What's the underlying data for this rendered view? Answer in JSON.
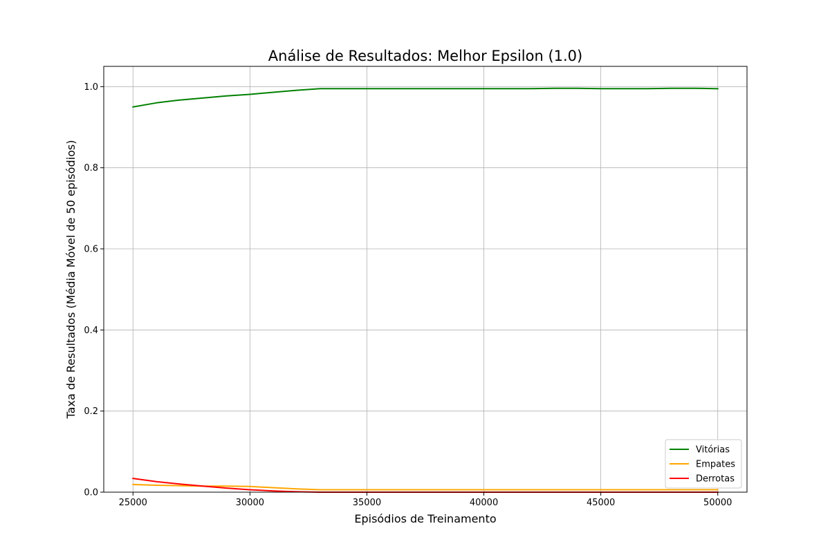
{
  "chart_data": {
    "type": "line",
    "title": "Análise de Resultados: Melhor Epsilon (1.0)",
    "xlabel": "Episódios de Treinamento",
    "ylabel": "Taxa de Resultados (Média Móvel de 50 episódios)",
    "xlim": [
      23750,
      51250
    ],
    "ylim": [
      0.0,
      1.05
    ],
    "xticks": [
      25000,
      30000,
      35000,
      40000,
      45000,
      50000
    ],
    "yticks": [
      0.0,
      0.2,
      0.4,
      0.6,
      0.8,
      1.0
    ],
    "ytick_labels": [
      "0.0",
      "0.2",
      "0.4",
      "0.6",
      "0.8",
      "1.0"
    ],
    "grid": true,
    "legend_position": "lower-right",
    "x": [
      25000,
      26000,
      27000,
      28000,
      29000,
      30000,
      31000,
      32000,
      33000,
      34000,
      35000,
      36000,
      37000,
      38000,
      39000,
      40000,
      41000,
      42000,
      43000,
      44000,
      45000,
      46000,
      47000,
      48000,
      49000,
      50000
    ],
    "series": [
      {
        "name": "Vitórias",
        "color": "#008000",
        "values": [
          0.95,
          0.96,
          0.967,
          0.972,
          0.977,
          0.981,
          0.986,
          0.991,
          0.995,
          0.995,
          0.995,
          0.995,
          0.995,
          0.995,
          0.995,
          0.995,
          0.995,
          0.995,
          0.996,
          0.996,
          0.995,
          0.995,
          0.995,
          0.996,
          0.996,
          0.995
        ]
      },
      {
        "name": "Empates",
        "color": "#ffa500",
        "values": [
          0.019,
          0.017,
          0.016,
          0.015,
          0.015,
          0.014,
          0.011,
          0.008,
          0.006,
          0.006,
          0.006,
          0.006,
          0.006,
          0.006,
          0.006,
          0.006,
          0.006,
          0.006,
          0.006,
          0.006,
          0.006,
          0.006,
          0.006,
          0.006,
          0.006,
          0.006
        ]
      },
      {
        "name": "Derrotas",
        "color": "#ff0000",
        "values": [
          0.034,
          0.026,
          0.02,
          0.015,
          0.01,
          0.006,
          0.003,
          0.001,
          0.0,
          0.0,
          0.0,
          0.0,
          0.0,
          0.0,
          0.0,
          0.0,
          0.0,
          0.0,
          0.0,
          0.0,
          0.0,
          0.0,
          0.0,
          0.0,
          0.0,
          0.0
        ]
      }
    ]
  }
}
